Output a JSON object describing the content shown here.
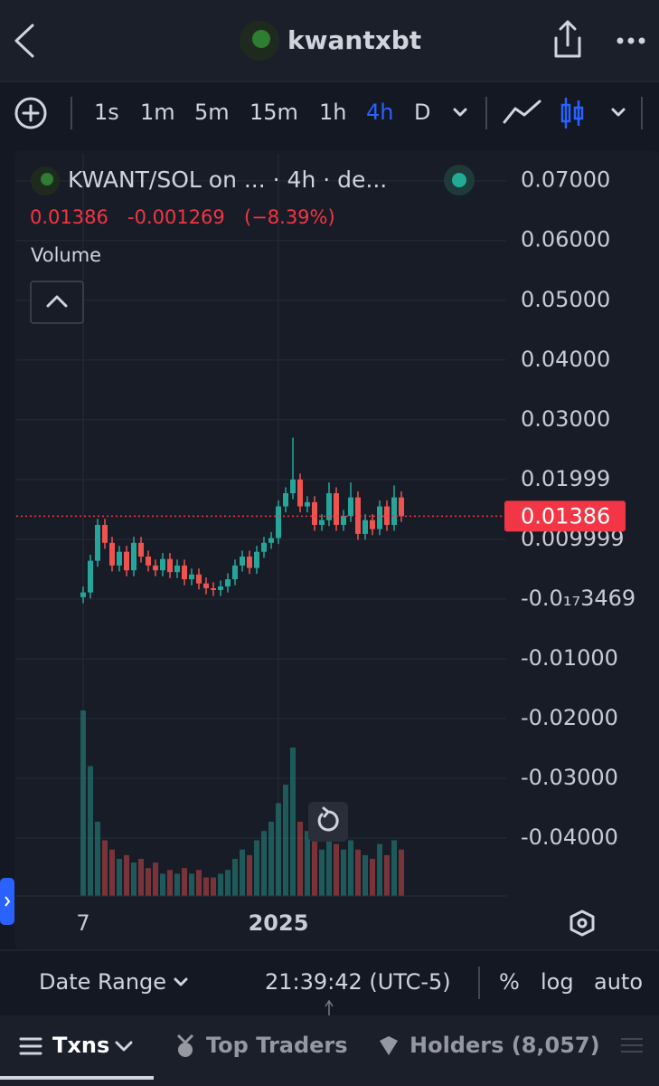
{
  "header": {
    "title": "kwantxbt"
  },
  "toolbar": {
    "intervals": [
      "1s",
      "1m",
      "5m",
      "15m",
      "1h",
      "4h",
      "D"
    ],
    "active_index": 5
  },
  "chart_data": {
    "type": "candlestick",
    "title": "KWANT/SOL on ... · 4h · de...",
    "last_price": 0.01386,
    "change": "-0.001269",
    "change_pct": "(−8.39%)",
    "volume_label": "Volume",
    "up_color": "#26a69a",
    "down_color": "#ef5350",
    "price_line_color": "#f23645",
    "ylim": [
      -0.0497,
      0.0745
    ],
    "yticks": [
      {
        "value": 0.07,
        "label": "0.07000"
      },
      {
        "value": 0.06,
        "label": "0.06000"
      },
      {
        "value": 0.05,
        "label": "0.05000"
      },
      {
        "value": 0.04,
        "label": "0.04000"
      },
      {
        "value": 0.03,
        "label": "0.03000"
      },
      0.01999,
      0.009999,
      {
        "value": -3.469e-18,
        "label": "-0.0₁₇3469"
      },
      {
        "value": -0.01,
        "label": "-0.01000"
      },
      {
        "value": -0.02,
        "label": "-0.02000"
      },
      {
        "value": -0.03,
        "label": "-0.03000"
      },
      {
        "value": -0.04,
        "label": "-0.04000"
      }
    ],
    "grid": true,
    "categories": [
      "7",
      null,
      null,
      null,
      null,
      null,
      null,
      null,
      null,
      null,
      null,
      null,
      null,
      null,
      null,
      null,
      null,
      null,
      null,
      null,
      null,
      null,
      null,
      null,
      null,
      null,
      null,
      "2025",
      null,
      null,
      null,
      null,
      null,
      null,
      null,
      null,
      null,
      null,
      null,
      null,
      null,
      null,
      null,
      null,
      null
    ],
    "open": [
      0.0003,
      0.0011,
      0.0064,
      0.0124,
      0.0094,
      0.0056,
      0.0079,
      0.0048,
      0.0094,
      0.0071,
      0.0056,
      0.0048,
      0.0067,
      0.0045,
      0.0056,
      0.0033,
      0.0041,
      0.0026,
      0.0018,
      0.0015,
      0.0021,
      0.0033,
      0.0056,
      0.0071,
      0.0052,
      0.0079,
      0.0094,
      0.0102,
      0.0155,
      0.0177,
      0.02,
      0.0155,
      0.0162,
      0.0124,
      0.0132,
      0.0177,
      0.0124,
      0.0139,
      0.017,
      0.0109,
      0.0132,
      0.0117,
      0.0155,
      0.0124,
      0.017
    ],
    "high": [
      0.0021,
      0.0074,
      0.0134,
      0.0134,
      0.0104,
      0.0089,
      0.0089,
      0.0104,
      0.0104,
      0.0081,
      0.0066,
      0.0077,
      0.0077,
      0.0066,
      0.0066,
      0.0051,
      0.0051,
      0.0036,
      0.0028,
      0.0031,
      0.0043,
      0.0066,
      0.0081,
      0.0081,
      0.0089,
      0.0104,
      0.0112,
      0.0165,
      0.0187,
      0.027,
      0.021,
      0.0172,
      0.0172,
      0.0142,
      0.0195,
      0.0187,
      0.0149,
      0.0195,
      0.018,
      0.0142,
      0.0142,
      0.0165,
      0.0165,
      0.019,
      0.018
    ],
    "low": [
      -0.0007,
      0.0001,
      0.0054,
      0.0084,
      0.0046,
      0.0046,
      0.0038,
      0.0038,
      0.0061,
      0.0046,
      0.0038,
      0.0038,
      0.0035,
      0.0035,
      0.0023,
      0.0023,
      0.0016,
      0.0008,
      0.0005,
      0.0005,
      0.0011,
      0.0023,
      0.0046,
      0.0042,
      0.0042,
      0.0069,
      0.0084,
      0.0092,
      0.0145,
      0.0167,
      0.0145,
      0.0145,
      0.0114,
      0.0114,
      0.0122,
      0.0114,
      0.0114,
      0.0129,
      0.0099,
      0.0099,
      0.0107,
      0.0107,
      0.0114,
      0.0114,
      0.0129
    ],
    "close": [
      0.0011,
      0.0064,
      0.0124,
      0.0094,
      0.0056,
      0.0079,
      0.0048,
      0.0094,
      0.0071,
      0.0056,
      0.0048,
      0.0067,
      0.0045,
      0.0056,
      0.0033,
      0.0041,
      0.0026,
      0.0018,
      0.0015,
      0.0021,
      0.0033,
      0.0056,
      0.0071,
      0.0052,
      0.0079,
      0.0094,
      0.0102,
      0.0155,
      0.0177,
      0.02,
      0.0155,
      0.0162,
      0.0124,
      0.0132,
      0.0177,
      0.0124,
      0.0139,
      0.017,
      0.0109,
      0.0132,
      0.0117,
      0.0155,
      0.0124,
      0.017,
      0.01386
    ],
    "volume": [
      100,
      70,
      40,
      30,
      25,
      20,
      22,
      18,
      20,
      15,
      18,
      12,
      14,
      12,
      15,
      12,
      14,
      10,
      10,
      12,
      14,
      20,
      25,
      22,
      30,
      35,
      40,
      50,
      60,
      80,
      40,
      35,
      30,
      25,
      35,
      28,
      25,
      30,
      25,
      22,
      20,
      28,
      22,
      30,
      25
    ]
  },
  "footer": {
    "date_range": "Date Range",
    "time": "21:39:42 (UTC-5)",
    "options": [
      "%",
      "log",
      "auto"
    ]
  },
  "tabs": [
    "Txns",
    "Top Traders",
    "Holders (8,057)"
  ]
}
